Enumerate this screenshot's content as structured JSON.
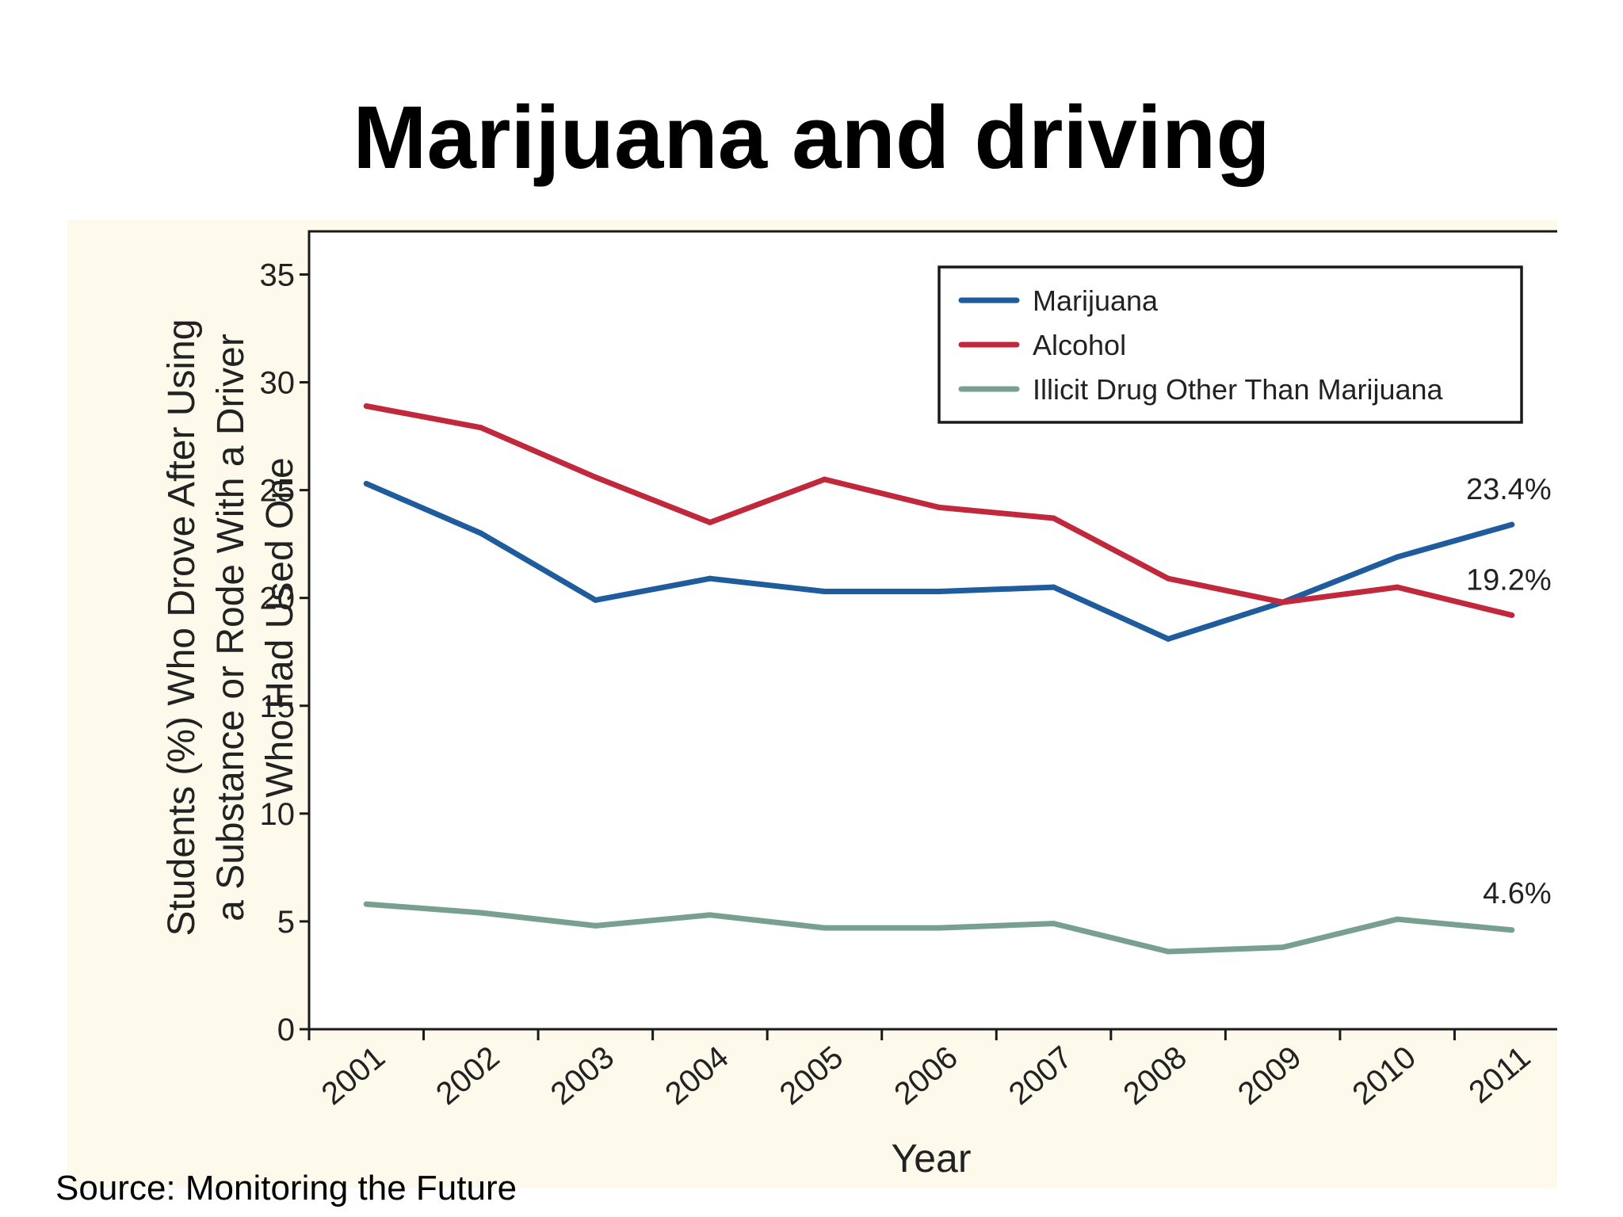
{
  "slide": {
    "title": "Marijuana and driving",
    "source": "Source: Monitoring the Future"
  },
  "colors": {
    "background": "#fdfaeb",
    "marijuana": "#1f5c9e",
    "alcohol": "#c2283c",
    "other": "#78a090"
  },
  "chart_data": {
    "type": "line",
    "x": [
      "2001",
      "2002",
      "2003",
      "2004",
      "2005",
      "2006",
      "2007",
      "2008",
      "2009",
      "2010",
      "2011"
    ],
    "series": [
      {
        "name": "Marijuana",
        "color": "#1f5c9e",
        "values": [
          25.3,
          23.0,
          19.9,
          20.9,
          20.3,
          20.3,
          20.5,
          18.1,
          19.8,
          21.9,
          23.4
        ],
        "end_label": "23.4%"
      },
      {
        "name": "Alcohol",
        "color": "#c2283c",
        "values": [
          28.9,
          27.9,
          25.6,
          23.5,
          25.5,
          24.2,
          23.7,
          20.9,
          19.8,
          20.5,
          19.2
        ],
        "end_label": "19.2%"
      },
      {
        "name": "Illicit Drug Other Than Marijuana",
        "color": "#78a090",
        "values": [
          5.8,
          5.4,
          4.8,
          5.3,
          4.7,
          4.7,
          4.9,
          3.6,
          3.8,
          5.1,
          4.6
        ],
        "end_label": "4.6%"
      }
    ],
    "xlabel": "Year",
    "ylabel_lines": [
      "Students (%) Who Drove After Using",
      "a Substance or Rode With a Driver",
      "Who Had Used One"
    ],
    "ylim": [
      0,
      37
    ],
    "yticks": [
      0,
      5,
      10,
      15,
      20,
      25,
      30,
      35
    ],
    "legend_position": "top-right",
    "grid": false
  }
}
